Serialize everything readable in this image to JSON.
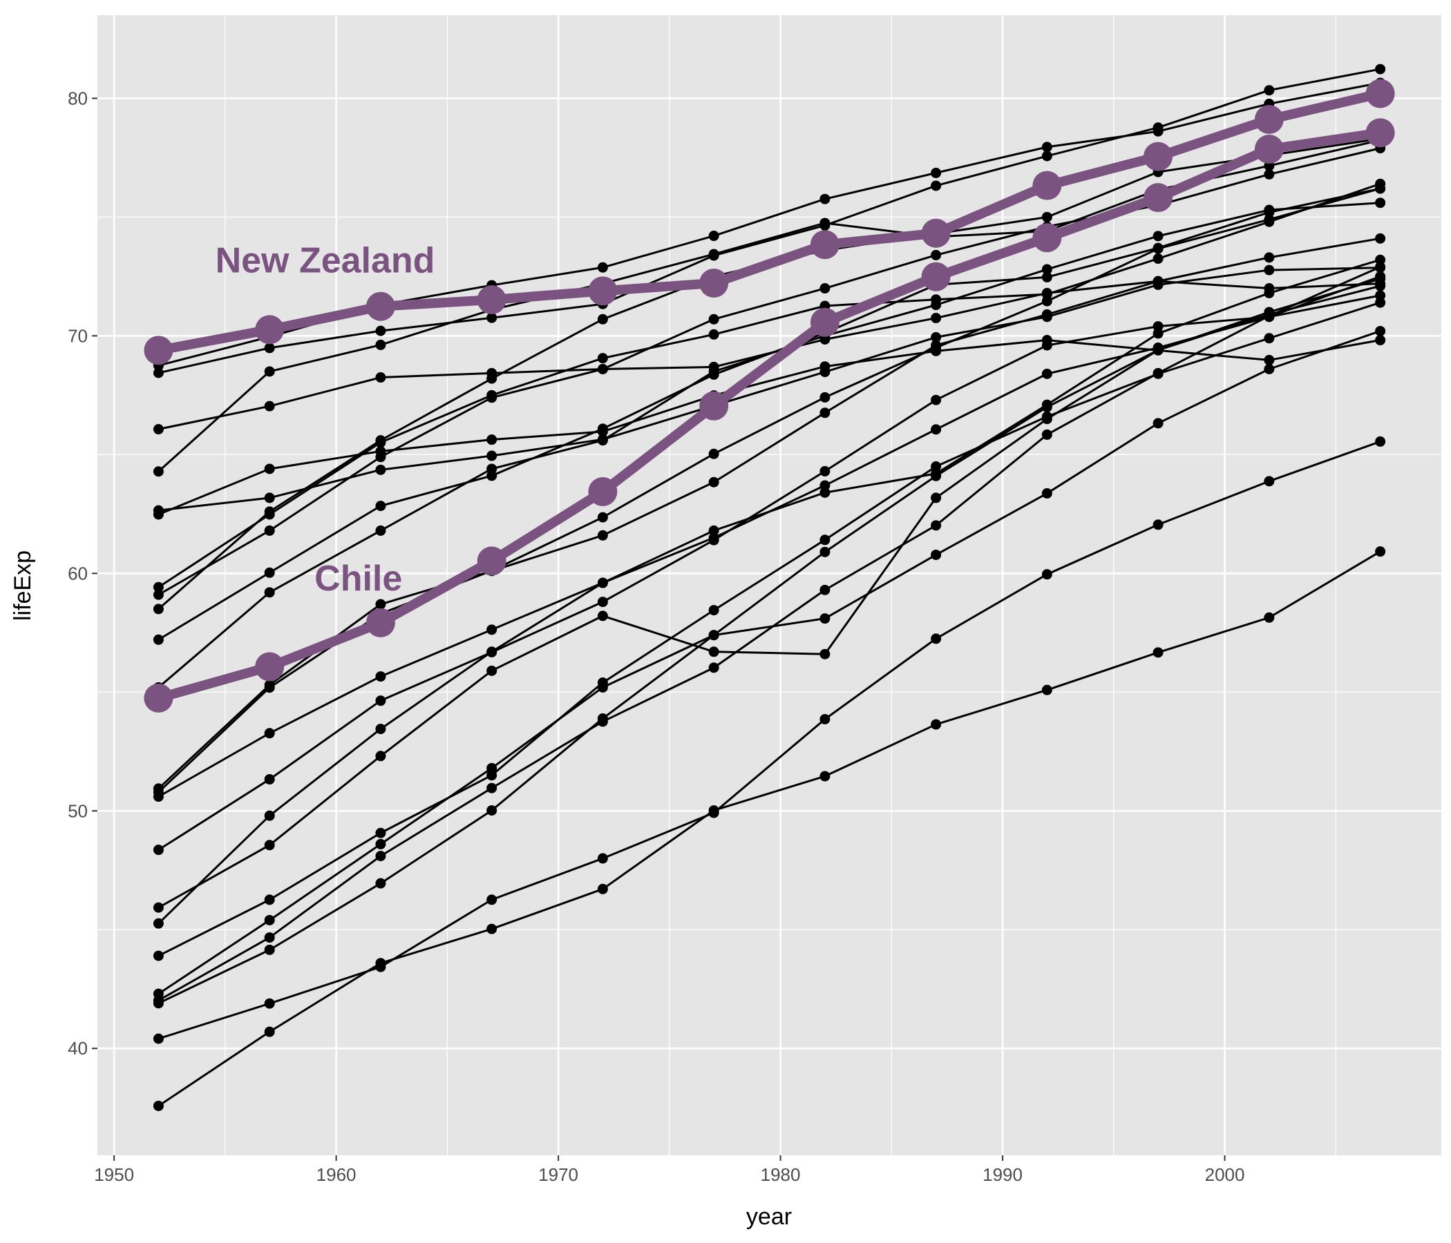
{
  "chart_data": {
    "type": "line",
    "xlabel": "year",
    "ylabel": "lifeExp",
    "xlim": [
      1949.25,
      2009.75
    ],
    "ylim": [
      35.5,
      83.5
    ],
    "x_ticks": [
      1950,
      1960,
      1970,
      1980,
      1990,
      2000
    ],
    "y_ticks": [
      40,
      50,
      60,
      70,
      80
    ],
    "grid": true,
    "legend": "none",
    "x": [
      1952,
      1957,
      1962,
      1967,
      1972,
      1977,
      1982,
      1987,
      1992,
      1997,
      2002,
      2007
    ],
    "series": [
      {
        "values": [
          68.75,
          69.96,
          71.3,
          72.13,
          72.88,
          74.21,
          75.76,
          76.86,
          77.95,
          78.61,
          79.77,
          80.65
        ]
      },
      {
        "values": [
          68.44,
          69.49,
          70.21,
          70.76,
          71.34,
          73.38,
          74.65,
          76.32,
          77.57,
          78.77,
          80.34,
          81.23
        ]
      },
      {
        "values": [
          62.48,
          64.4,
          65.14,
          65.63,
          65.97,
          67.49,
          68.71,
          69.36,
          69.82,
          69.39,
          68.98,
          69.82
        ]
      },
      {
        "values": [
          66.07,
          67.04,
          68.25,
          68.43,
          68.6,
          68.69,
          69.85,
          70.75,
          71.8,
          72.3,
          73.3,
          74.1
        ]
      },
      {
        "values": [
          64.29,
          68.5,
          69.62,
          71.1,
          72.2,
          73.44,
          74.75,
          74.17,
          74.41,
          76.15,
          77.16,
          78.24
        ]
      },
      {
        "values": [
          62.65,
          63.18,
          64.36,
          64.95,
          65.64,
          67.06,
          68.48,
          69.94,
          70.8,
          72.15,
          72.77,
          72.87
        ]
      },
      {
        "values": [
          59.42,
          62.48,
          65.51,
          67.5,
          69.06,
          70.06,
          71.26,
          71.53,
          71.75,
          73.25,
          74.8,
          76.4
        ]
      },
      {
        "values": [
          59.1,
          61.8,
          64.9,
          67.4,
          68.6,
          70.7,
          72.0,
          73.4,
          74.6,
          75.5,
          76.8,
          77.9
        ]
      },
      {
        "values": [
          58.5,
          62.6,
          65.6,
          68.2,
          70.7,
          72.5,
          73.6,
          74.3,
          75.0,
          76.9,
          77.6,
          78.3
        ]
      },
      {
        "values": [
          57.21,
          60.03,
          62.84,
          64.11,
          66.09,
          68.37,
          70.12,
          72.15,
          72.47,
          73.7,
          75.2,
          76.2
        ]
      },
      {
        "values": [
          55.2,
          59.2,
          61.8,
          64.4,
          65.6,
          68.5,
          70.0,
          71.3,
          72.8,
          74.2,
          75.3,
          75.6
        ]
      },
      {
        "values": [
          50.79,
          55.19,
          58.3,
          60.11,
          62.36,
          65.03,
          67.41,
          69.5,
          71.46,
          73.67,
          74.9,
          76.2
        ]
      },
      {
        "values": [
          50.94,
          55.3,
          58.7,
          60.1,
          61.6,
          63.84,
          66.76,
          69.6,
          70.9,
          72.3,
          72.0,
          72.2
        ]
      },
      {
        "values": [
          50.6,
          53.27,
          55.66,
          57.63,
          59.6,
          61.8,
          63.4,
          64.2,
          67.1,
          70.1,
          71.8,
          73.2
        ]
      },
      {
        "values": [
          48.36,
          51.33,
          54.64,
          56.68,
          58.8,
          61.4,
          64.3,
          67.3,
          69.6,
          70.4,
          70.8,
          71.7
        ]
      },
      {
        "values": [
          45.93,
          48.56,
          52.31,
          55.9,
          58.21,
          56.7,
          56.6,
          63.18,
          66.5,
          69.4,
          71.0,
          72.4
        ]
      },
      {
        "values": [
          45.26,
          49.8,
          53.45,
          56.7,
          59.6,
          61.5,
          63.7,
          66.06,
          68.4,
          69.5,
          70.8,
          72.5
        ]
      },
      {
        "values": [
          43.9,
          46.26,
          49.07,
          51.5,
          55.4,
          58.45,
          61.41,
          64.5,
          66.6,
          68.4,
          69.9,
          71.4
        ]
      },
      {
        "values": [
          42.3,
          45.4,
          48.6,
          51.8,
          55.2,
          57.4,
          60.9,
          64.1,
          67.0,
          69.4,
          70.9,
          72.1
        ]
      },
      {
        "values": [
          42.02,
          44.67,
          48.1,
          50.96,
          53.76,
          56.03,
          59.3,
          62.02,
          65.84,
          68.43,
          70.84,
          72.9
        ]
      },
      {
        "values": [
          41.9,
          44.15,
          46.95,
          50.02,
          53.89,
          57.4,
          58.1,
          60.78,
          63.37,
          66.32,
          68.6,
          70.2
        ]
      },
      {
        "values": [
          40.41,
          41.89,
          43.43,
          46.26,
          48.0,
          49.92,
          53.86,
          57.25,
          59.96,
          62.05,
          63.88,
          65.55
        ]
      },
      {
        "values": [
          37.58,
          40.7,
          43.59,
          45.03,
          46.71,
          50.02,
          51.46,
          53.64,
          55.09,
          56.67,
          58.14,
          60.92
        ]
      }
    ],
    "highlight": [
      {
        "name": "New Zealand",
        "label": "New Zealand",
        "label_x": 1959.5,
        "label_y": 73.2,
        "values": [
          69.39,
          70.26,
          71.24,
          71.52,
          71.89,
          72.22,
          73.84,
          74.32,
          76.33,
          77.55,
          79.11,
          80.2
        ]
      },
      {
        "name": "Chile",
        "label": "Chile",
        "label_x": 1961.0,
        "label_y": 59.8,
        "values": [
          54.75,
          56.07,
          57.92,
          60.52,
          63.44,
          67.05,
          70.57,
          72.49,
          74.13,
          75.82,
          77.86,
          78.55
        ]
      }
    ],
    "colors": {
      "panel": "#e5e5e5",
      "grid": "#ffffff",
      "line": "#000000",
      "highlight": "#7b5380"
    }
  }
}
